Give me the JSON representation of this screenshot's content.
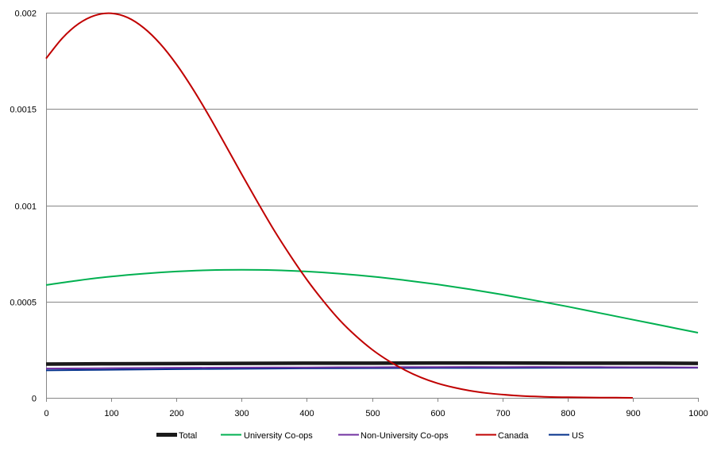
{
  "chart_data": {
    "type": "line",
    "title": "",
    "xlabel": "",
    "ylabel": "",
    "xlim": [
      0,
      1000
    ],
    "ylim": [
      0,
      0.002
    ],
    "grid": true,
    "legend_position": "bottom",
    "x_ticks": [
      "0",
      "100",
      "200",
      "300",
      "400",
      "500",
      "600",
      "700",
      "800",
      "900",
      "1000"
    ],
    "y_ticks": [
      "0",
      "0.0005",
      "0.001",
      "0.0015",
      "0.002"
    ],
    "series": [
      {
        "name": "Total",
        "color": "#1a1a1a",
        "line_width": "thick",
        "x": [
          0,
          100,
          200,
          300,
          400,
          500,
          600,
          700,
          800,
          900,
          1000
        ],
        "y": [
          0.000175,
          0.000177,
          0.000178,
          0.000179,
          0.00018,
          0.00018,
          0.000181,
          0.000181,
          0.00018,
          0.00018,
          0.000179
        ]
      },
      {
        "name": "University Co-ops",
        "color": "#00b050",
        "line_width": "normal",
        "x": [
          0,
          50,
          100,
          150,
          200,
          250,
          300,
          350,
          400,
          450,
          500,
          550,
          600,
          650,
          700,
          750,
          800,
          850,
          900,
          950,
          1000
        ],
        "y": [
          0.000586,
          0.00061,
          0.00063,
          0.000645,
          0.000656,
          0.000663,
          0.000665,
          0.000663,
          0.000656,
          0.000645,
          0.00063,
          0.000611,
          0.000589,
          0.000564,
          0.000536,
          0.000506,
          0.000474,
          0.00044,
          0.000406,
          0.000372,
          0.000338
        ]
      },
      {
        "name": "Non-University Co-ops",
        "color": "#7030a0",
        "line_width": "normal",
        "x": [
          0,
          100,
          200,
          300,
          400,
          500,
          600,
          700,
          800,
          900,
          1000
        ],
        "y": [
          0.000152,
          0.000154,
          0.000156,
          0.000157,
          0.000158,
          0.000159,
          0.00016,
          0.00016,
          0.00016,
          0.000159,
          0.000158
        ]
      },
      {
        "name": "Canada",
        "color": "#c00000",
        "line_width": "normal",
        "x": [
          0,
          25,
          50,
          75,
          100,
          125,
          150,
          175,
          200,
          225,
          250,
          275,
          300,
          325,
          350,
          375,
          400,
          425,
          450,
          475,
          500,
          525,
          550,
          575,
          600,
          625,
          650,
          675,
          700,
          725,
          750,
          775,
          800,
          825,
          850,
          875,
          900
        ],
        "y": [
          0.001762,
          0.001868,
          0.001943,
          0.001986,
          0.001997,
          0.001975,
          0.001921,
          0.001839,
          0.001732,
          0.001605,
          0.001464,
          0.001314,
          0.001162,
          0.001013,
          0.000869,
          0.000737,
          0.000614,
          0.000504,
          0.000405,
          0.000322,
          0.000251,
          0.000193,
          0.000145,
          0.000106,
          7.6e-05,
          5.4e-05,
          3.7e-05,
          2.5e-05,
          1.7e-05,
          1.1e-05,
          7e-06,
          4e-06,
          3e-06,
          2e-06,
          1e-06,
          1e-06,
          0
        ]
      },
      {
        "name": "US",
        "color": "#002e8a",
        "line_width": "normal",
        "x": [
          0,
          100,
          200,
          300,
          400,
          500,
          600,
          700,
          800,
          900,
          1000
        ],
        "y": [
          0.000143,
          0.000146,
          0.000149,
          0.000151,
          0.000153,
          0.000154,
          0.000155,
          0.000155,
          0.000156,
          0.000156,
          0.000156
        ]
      }
    ]
  }
}
